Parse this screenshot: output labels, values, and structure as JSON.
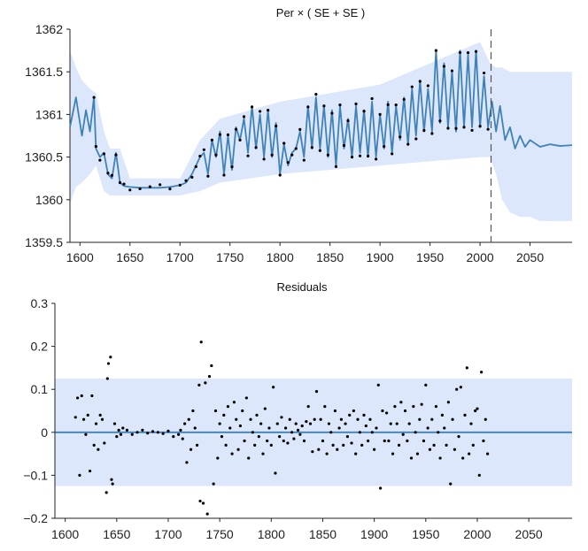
{
  "colors": {
    "line": "#3f82b8",
    "band": "#dce7fb",
    "points": "#000000",
    "axis": "#222222",
    "divider": "#555555"
  },
  "chart_data": [
    {
      "type": "line",
      "title": "Per × ( SE + SE )",
      "xlabel": "",
      "ylabel": "",
      "xlim": [
        1590,
        2092
      ],
      "ylim": [
        1359.5,
        1362
      ],
      "xticks": [
        "1600",
        "1650",
        "1700",
        "1750",
        "1800",
        "1850",
        "1900",
        "1950",
        "2000",
        "2050"
      ],
      "yticks": [
        "1359.5",
        "1360",
        "1360.5",
        "1361",
        "1361.5",
        "1362"
      ],
      "forecast_divider_x": 2011,
      "series": [
        {
          "kind": "fitted line with forecast",
          "x": [
            1590,
            1596,
            1602,
            1606,
            1610,
            1614,
            1616,
            1620,
            1624,
            1628,
            1632,
            1636,
            1640,
            1644,
            1650,
            1660,
            1670,
            1680,
            1690,
            1700,
            1706,
            1712,
            1716,
            1720,
            1724,
            1728,
            1732,
            1736,
            1740,
            1744,
            1748,
            1752,
            1756,
            1760,
            1764,
            1768,
            1772,
            1776,
            1780,
            1784,
            1788,
            1792,
            1796,
            1800,
            1804,
            1808,
            1812,
            1816,
            1820,
            1824,
            1828,
            1832,
            1836,
            1840,
            1844,
            1848,
            1852,
            1856,
            1860,
            1864,
            1868,
            1872,
            1876,
            1880,
            1884,
            1888,
            1892,
            1896,
            1900,
            1904,
            1908,
            1912,
            1916,
            1920,
            1924,
            1928,
            1932,
            1936,
            1940,
            1944,
            1948,
            1952,
            1956,
            1960,
            1964,
            1968,
            1972,
            1976,
            1980,
            1984,
            1988,
            1992,
            1996,
            2000,
            2004,
            2008,
            2012,
            2016,
            2020,
            2025,
            2030,
            2035,
            2040,
            2045,
            2050,
            2060,
            2070,
            2080,
            2092
          ],
          "y": [
            1360.85,
            1361.2,
            1360.75,
            1361.05,
            1360.8,
            1361.2,
            1360.6,
            1360.5,
            1360.55,
            1360.3,
            1360.25,
            1360.55,
            1360.2,
            1360.16,
            1360.15,
            1360.14,
            1360.14,
            1360.14,
            1360.15,
            1360.17,
            1360.2,
            1360.3,
            1360.4,
            1360.5,
            1360.55,
            1360.3,
            1360.7,
            1360.5,
            1360.8,
            1360.3,
            1360.75,
            1360.35,
            1360.85,
            1360.7,
            1360.95,
            1360.55,
            1361.1,
            1360.6,
            1361.0,
            1360.5,
            1361.05,
            1360.5,
            1360.9,
            1360.3,
            1360.65,
            1360.4,
            1360.55,
            1360.6,
            1360.8,
            1360.5,
            1361.1,
            1360.6,
            1361.2,
            1360.6,
            1361.1,
            1360.5,
            1361.05,
            1360.4,
            1361.1,
            1360.6,
            1360.95,
            1360.5,
            1361.1,
            1360.55,
            1361.05,
            1360.5,
            1361.15,
            1360.5,
            1361.0,
            1360.6,
            1361.15,
            1360.55,
            1361.1,
            1360.7,
            1361.2,
            1360.65,
            1361.3,
            1360.75,
            1361.4,
            1360.8,
            1361.3,
            1360.8,
            1361.75,
            1360.9,
            1361.6,
            1360.85,
            1361.5,
            1360.8,
            1361.75,
            1360.85,
            1361.7,
            1360.85,
            1361.75,
            1360.85,
            1361.45,
            1360.85,
            1361.15,
            1360.8,
            1361.1,
            1360.7,
            1360.85,
            1360.6,
            1360.75,
            1360.62,
            1360.7,
            1360.62,
            1360.65,
            1360.63,
            1360.64
          ]
        }
      ],
      "band": {
        "x": [
          1590,
          1596,
          1602,
          1610,
          1616,
          1624,
          1630,
          1640,
          1650,
          1700,
          1720,
          1740,
          1800,
          1900,
          2000,
          2010,
          2016,
          2022,
          2030,
          2040,
          2050,
          2060,
          2070,
          2080,
          2092
        ],
        "upper": [
          1361.75,
          1361.55,
          1361.4,
          1361.3,
          1361.25,
          1360.8,
          1360.6,
          1360.6,
          1360.25,
          1360.25,
          1360.7,
          1360.95,
          1361.15,
          1361.35,
          1361.85,
          1361.6,
          1361.55,
          1361.55,
          1361.5,
          1361.5,
          1361.5,
          1361.5,
          1361.5,
          1361.5,
          1361.5
        ],
        "lower": [
          1359.95,
          1360.15,
          1360.2,
          1360.3,
          1360.4,
          1360.1,
          1360.05,
          1360.05,
          1360.05,
          1360.05,
          1360.1,
          1360.2,
          1360.3,
          1360.4,
          1360.5,
          1360.5,
          1360.3,
          1360.0,
          1359.85,
          1359.8,
          1359.8,
          1359.75,
          1359.75,
          1359.75,
          1359.75
        ]
      }
    },
    {
      "type": "scatter",
      "title": "Residuals",
      "xlabel": "",
      "ylabel": "",
      "xlim": [
        1590,
        2092
      ],
      "ylim": [
        -0.2,
        0.3
      ],
      "xticks": [
        "1600",
        "1650",
        "1700",
        "1750",
        "1800",
        "1850",
        "1900",
        "1950",
        "2000",
        "2050"
      ],
      "yticks": [
        "−0.2",
        "−0.1",
        "0",
        "0.1",
        "0.2",
        "0.3"
      ],
      "band": [
        -0.125,
        0.125
      ],
      "zero_line": 0,
      "points": [
        [
          1610,
          0.035
        ],
        [
          1612,
          0.08
        ],
        [
          1614,
          -0.1
        ],
        [
          1616,
          0.085
        ],
        [
          1618,
          0.03
        ],
        [
          1620,
          -0.005
        ],
        [
          1622,
          0.04
        ],
        [
          1624,
          -0.09
        ],
        [
          1626,
          0.085
        ],
        [
          1628,
          -0.03
        ],
        [
          1630,
          0.02
        ],
        [
          1632,
          -0.04
        ],
        [
          1634,
          0.04
        ],
        [
          1636,
          0.03
        ],
        [
          1638,
          -0.025
        ],
        [
          1640,
          -0.14
        ],
        [
          1641,
          0.125
        ],
        [
          1642,
          0.16
        ],
        [
          1644,
          0.175
        ],
        [
          1645,
          -0.11
        ],
        [
          1646,
          -0.12
        ],
        [
          1648,
          0.02
        ],
        [
          1650,
          -0.01
        ],
        [
          1652,
          0.005
        ],
        [
          1654,
          -0.005
        ],
        [
          1656,
          0.01
        ],
        [
          1660,
          0.005
        ],
        [
          1665,
          -0.005
        ],
        [
          1670,
          0.0
        ],
        [
          1675,
          0.005
        ],
        [
          1680,
          -0.002
        ],
        [
          1685,
          0.002
        ],
        [
          1690,
          0.0
        ],
        [
          1695,
          -0.003
        ],
        [
          1700,
          0.003
        ],
        [
          1705,
          -0.01
        ],
        [
          1710,
          -0.005
        ],
        [
          1712,
          0.005
        ],
        [
          1714,
          -0.015
        ],
        [
          1716,
          0.02
        ],
        [
          1718,
          -0.07
        ],
        [
          1720,
          0.03
        ],
        [
          1722,
          -0.04
        ],
        [
          1724,
          0.05
        ],
        [
          1726,
          0.01
        ],
        [
          1728,
          -0.03
        ],
        [
          1730,
          0.11
        ],
        [
          1731,
          -0.16
        ],
        [
          1732,
          0.21
        ],
        [
          1734,
          -0.165
        ],
        [
          1736,
          0.115
        ],
        [
          1738,
          -0.19
        ],
        [
          1740,
          0.13
        ],
        [
          1742,
          0.155
        ],
        [
          1744,
          -0.12
        ],
        [
          1746,
          0.05
        ],
        [
          1748,
          -0.06
        ],
        [
          1750,
          0.02
        ],
        [
          1752,
          -0.01
        ],
        [
          1754,
          0.04
        ],
        [
          1756,
          -0.03
        ],
        [
          1758,
          0.06
        ],
        [
          1760,
          0.01
        ],
        [
          1762,
          -0.05
        ],
        [
          1764,
          0.07
        ],
        [
          1766,
          0.03
        ],
        [
          1768,
          -0.04
        ],
        [
          1770,
          0.015
        ],
        [
          1772,
          0.05
        ],
        [
          1774,
          -0.02
        ],
        [
          1776,
          0.08
        ],
        [
          1778,
          -0.06
        ],
        [
          1780,
          0.03
        ],
        [
          1782,
          0.0
        ],
        [
          1784,
          -0.03
        ],
        [
          1786,
          0.04
        ],
        [
          1788,
          -0.01
        ],
        [
          1790,
          0.02
        ],
        [
          1792,
          -0.05
        ],
        [
          1794,
          0.055
        ],
        [
          1796,
          -0.02
        ],
        [
          1798,
          0.01
        ],
        [
          1800,
          -0.03
        ],
        [
          1802,
          0.105
        ],
        [
          1804,
          -0.095
        ],
        [
          1806,
          0.02
        ],
        [
          1808,
          -0.01
        ],
        [
          1810,
          0.035
        ],
        [
          1812,
          -0.02
        ],
        [
          1814,
          0.01
        ],
        [
          1816,
          -0.025
        ],
        [
          1818,
          0.03
        ],
        [
          1820,
          0.0
        ],
        [
          1822,
          -0.015
        ],
        [
          1824,
          0.02
        ],
        [
          1826,
          0.005
        ],
        [
          1828,
          -0.005
        ],
        [
          1830,
          0.015
        ],
        [
          1832,
          -0.02
        ],
        [
          1834,
          0.025
        ],
        [
          1836,
          0.06
        ],
        [
          1838,
          0.02
        ],
        [
          1840,
          -0.045
        ],
        [
          1842,
          0.03
        ],
        [
          1844,
          0.095
        ],
        [
          1846,
          -0.04
        ],
        [
          1848,
          0.03
        ],
        [
          1850,
          -0.02
        ],
        [
          1852,
          0.06
        ],
        [
          1854,
          -0.05
        ],
        [
          1856,
          0.02
        ],
        [
          1858,
          0.0
        ],
        [
          1860,
          -0.03
        ],
        [
          1862,
          0.05
        ],
        [
          1864,
          -0.04
        ],
        [
          1866,
          0.01
        ],
        [
          1868,
          0.03
        ],
        [
          1870,
          -0.03
        ],
        [
          1872,
          0.02
        ],
        [
          1874,
          -0.01
        ],
        [
          1876,
          0.04
        ],
        [
          1878,
          -0.025
        ],
        [
          1880,
          0.05
        ],
        [
          1882,
          -0.05
        ],
        [
          1884,
          0.03
        ],
        [
          1886,
          0.0
        ],
        [
          1888,
          -0.03
        ],
        [
          1890,
          0.04
        ],
        [
          1892,
          0.015
        ],
        [
          1894,
          -0.02
        ],
        [
          1896,
          0.03
        ],
        [
          1898,
          0.0
        ],
        [
          1900,
          -0.04
        ],
        [
          1902,
          0.01
        ],
        [
          1904,
          0.11
        ],
        [
          1906,
          -0.13
        ],
        [
          1908,
          0.05
        ],
        [
          1910,
          -0.02
        ],
        [
          1912,
          0.045
        ],
        [
          1914,
          -0.02
        ],
        [
          1916,
          0.02
        ],
        [
          1918,
          -0.05
        ],
        [
          1920,
          0.06
        ],
        [
          1922,
          0.02
        ],
        [
          1924,
          -0.03
        ],
        [
          1926,
          0.07
        ],
        [
          1928,
          -0.005
        ],
        [
          1930,
          0.05
        ],
        [
          1932,
          -0.02
        ],
        [
          1934,
          0.02
        ],
        [
          1936,
          -0.06
        ],
        [
          1938,
          0.06
        ],
        [
          1940,
          0.0
        ],
        [
          1942,
          -0.05
        ],
        [
          1944,
          0.03
        ],
        [
          1946,
          0.065
        ],
        [
          1948,
          -0.02
        ],
        [
          1950,
          0.11
        ],
        [
          1952,
          0.01
        ],
        [
          1954,
          -0.04
        ],
        [
          1956,
          0.03
        ],
        [
          1958,
          -0.03
        ],
        [
          1960,
          0.06
        ],
        [
          1962,
          0.0
        ],
        [
          1964,
          -0.06
        ],
        [
          1966,
          0.04
        ],
        [
          1968,
          0.01
        ],
        [
          1970,
          -0.03
        ],
        [
          1972,
          0.07
        ],
        [
          1974,
          -0.12
        ],
        [
          1976,
          0.03
        ],
        [
          1978,
          -0.04
        ],
        [
          1980,
          0.1
        ],
        [
          1982,
          -0.01
        ],
        [
          1984,
          0.105
        ],
        [
          1986,
          -0.06
        ],
        [
          1988,
          0.04
        ],
        [
          1990,
          0.15
        ],
        [
          1992,
          -0.05
        ],
        [
          1994,
          0.02
        ],
        [
          1996,
          -0.03
        ],
        [
          1998,
          0.05
        ],
        [
          2000,
          0.055
        ],
        [
          2002,
          -0.1
        ],
        [
          2004,
          0.14
        ],
        [
          2006,
          -0.02
        ],
        [
          2008,
          0.03
        ],
        [
          2010,
          -0.05
        ]
      ]
    }
  ]
}
